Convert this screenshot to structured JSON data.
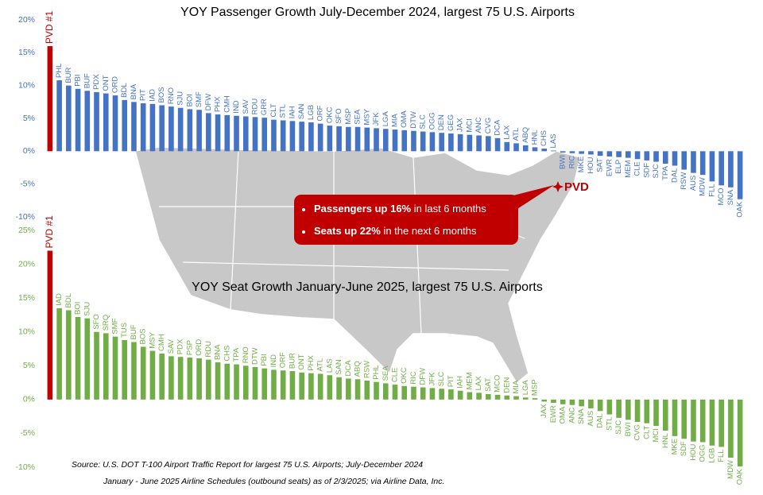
{
  "chart_data": [
    {
      "type": "bar",
      "title": "YOY Passenger Growth July-December 2024, largest 75 U.S. Airports",
      "categories": [
        "PVD #1",
        "PHL",
        "BUR",
        "PBI",
        "BUF",
        "PDX",
        "ONT",
        "ORD",
        "BDL",
        "BNA",
        "PIT",
        "IAD",
        "BOS",
        "RNO",
        "SJU",
        "BOI",
        "SMF",
        "DFW",
        "PHX",
        "CMH",
        "IND",
        "SAV",
        "RDU",
        "GRR",
        "CLT",
        "STL",
        "IAH",
        "SAN",
        "LGB",
        "ORF",
        "OKC",
        "SFO",
        "MSP",
        "SEA",
        "MSY",
        "JFK",
        "LGA",
        "MIA",
        "OMA",
        "DTW",
        "SLC",
        "OGG",
        "DEN",
        "GEG",
        "JAX",
        "MCI",
        "ANC",
        "CVG",
        "DCA",
        "LAX",
        "ATL",
        "ABQ",
        "HNL",
        "CHS",
        "LAS",
        "BWI",
        "RIC",
        "MKE",
        "HOU",
        "SAT",
        "EWR",
        "ELP",
        "MEM",
        "CLE",
        "SDF",
        "SJC",
        "TPA",
        "DAL",
        "RSW",
        "AUS",
        "MDW",
        "FLL",
        "MCO",
        "SNA",
        "OAK"
      ],
      "values": [
        16,
        10.8,
        10,
        9.5,
        9.2,
        9,
        8.8,
        8.5,
        7.8,
        7.5,
        7.3,
        7.2,
        7,
        6.8,
        6.6,
        6.4,
        6.3,
        5.8,
        5.6,
        5.5,
        5.4,
        5.3,
        5.2,
        5.1,
        4.8,
        4.7,
        4.6,
        4.5,
        4.4,
        4.2,
        3.9,
        3.8,
        3.7,
        3.7,
        3.6,
        3.5,
        3.4,
        3.3,
        3.2,
        3.1,
        3.0,
        2.9,
        2.8,
        2.7,
        2.6,
        2.5,
        2.4,
        2.3,
        2.0,
        1.4,
        1.2,
        0.9,
        0.6,
        0.4,
        0.1,
        -0.2,
        -0.3,
        -0.4,
        -0.5,
        -0.7,
        -0.8,
        -0.9,
        -1.0,
        -1.2,
        -1.4,
        -1.6,
        -1.9,
        -2.2,
        -2.8,
        -3.3,
        -3.6,
        -4.6,
        -5.2,
        -5.5,
        -7.3
      ],
      "color": "#4472c4",
      "first_color": "#c00000",
      "ylim": [
        -10,
        20
      ],
      "yticks": [
        {
          "value": -10,
          "label": "-10%"
        },
        {
          "value": -5,
          "label": "-5%"
        },
        {
          "value": 0,
          "label": "0%"
        },
        {
          "value": 5,
          "label": "5%"
        },
        {
          "value": 10,
          "label": "10%"
        },
        {
          "value": 15,
          "label": "15%"
        },
        {
          "value": 20,
          "label": "20%"
        }
      ]
    },
    {
      "type": "bar",
      "title": "YOY Seat Growth January-June 2025, largest 75 U.S. Airports",
      "categories": [
        "PVD #1",
        "IAD",
        "BDL",
        "BOI",
        "SJU",
        "SFO",
        "SRQ",
        "SMF",
        "TUS",
        "BUF",
        "BOS",
        "MSY",
        "CMH",
        "SAV",
        "PDX",
        "PSP",
        "ORD",
        "RDU",
        "BNA",
        "CHS",
        "TPA",
        "RNO",
        "DTW",
        "PBI",
        "IND",
        "ORF",
        "BUR",
        "ONT",
        "PHX",
        "ATL",
        "LAS",
        "SAN",
        "DCA",
        "ABQ",
        "RSW",
        "PHL",
        "SEA",
        "CLE",
        "OKC",
        "RIC",
        "DFW",
        "JFK",
        "SLC",
        "PIT",
        "IAH",
        "MEM",
        "LAX",
        "SAT",
        "MCO",
        "DEN",
        "MIA",
        "LGA",
        "MSP",
        "JAX",
        "EWR",
        "OMA",
        "ANC",
        "SNA",
        "AUS",
        "DAL",
        "STL",
        "SJC",
        "BWI",
        "CVG",
        "CLT",
        "MCI",
        "HNL",
        "MKE",
        "SDF",
        "HOU",
        "OGG",
        "LGB",
        "FLL",
        "MDW",
        "OAK"
      ],
      "values": [
        22,
        13.5,
        13.2,
        12.2,
        12,
        10,
        9.8,
        9.3,
        8.8,
        8.5,
        7.8,
        7.2,
        6.8,
        6.4,
        6.3,
        6.2,
        6.1,
        5.9,
        5.5,
        5.3,
        5.2,
        5.0,
        4.8,
        4.6,
        4.4,
        4.3,
        4.2,
        4.0,
        3.9,
        3.8,
        3.6,
        3.3,
        3.1,
        3.0,
        2.8,
        2.6,
        2.4,
        2.2,
        2.0,
        1.9,
        1.8,
        1.7,
        1.6,
        1.5,
        1.3,
        1.1,
        1.0,
        0.8,
        0.7,
        0.6,
        0.5,
        0.3,
        0.2,
        -0.3,
        -0.5,
        -0.7,
        -0.8,
        -1.0,
        -1.3,
        -1.7,
        -2.2,
        -2.7,
        -3.0,
        -3.3,
        -3.5,
        -3.9,
        -4.6,
        -5.4,
        -5.8,
        -6.2,
        -6.3,
        -6.8,
        -7.0,
        -8.6,
        -9.9
      ],
      "color": "#70ad47",
      "first_color": "#c00000",
      "ylim": [
        -10,
        25
      ],
      "yticks": [
        {
          "value": -10,
          "label": "-10%"
        },
        {
          "value": -5,
          "label": "-5%"
        },
        {
          "value": 0,
          "label": "0%"
        },
        {
          "value": 5,
          "label": "5%"
        },
        {
          "value": 10,
          "label": "10%"
        },
        {
          "value": 15,
          "label": "15%"
        },
        {
          "value": 20,
          "label": "20%"
        },
        {
          "value": 25,
          "label": "25%"
        }
      ]
    }
  ],
  "annotations": {
    "marker": "PVD",
    "callout": [
      {
        "bold": "Passengers up 16%",
        "rest": " in last 6 months"
      },
      {
        "bold": "Seats up 22%",
        "rest": " in the next 6 months"
      }
    ]
  },
  "source": [
    "Source: U.S.  DOT T-100 Airport Traffic Report for largest 75 U.S.  Airports; July-December  2024",
    "January - June 2025 Airline Schedules (outbound seats) as of 2/3/2025; via Airline Data, Inc."
  ]
}
